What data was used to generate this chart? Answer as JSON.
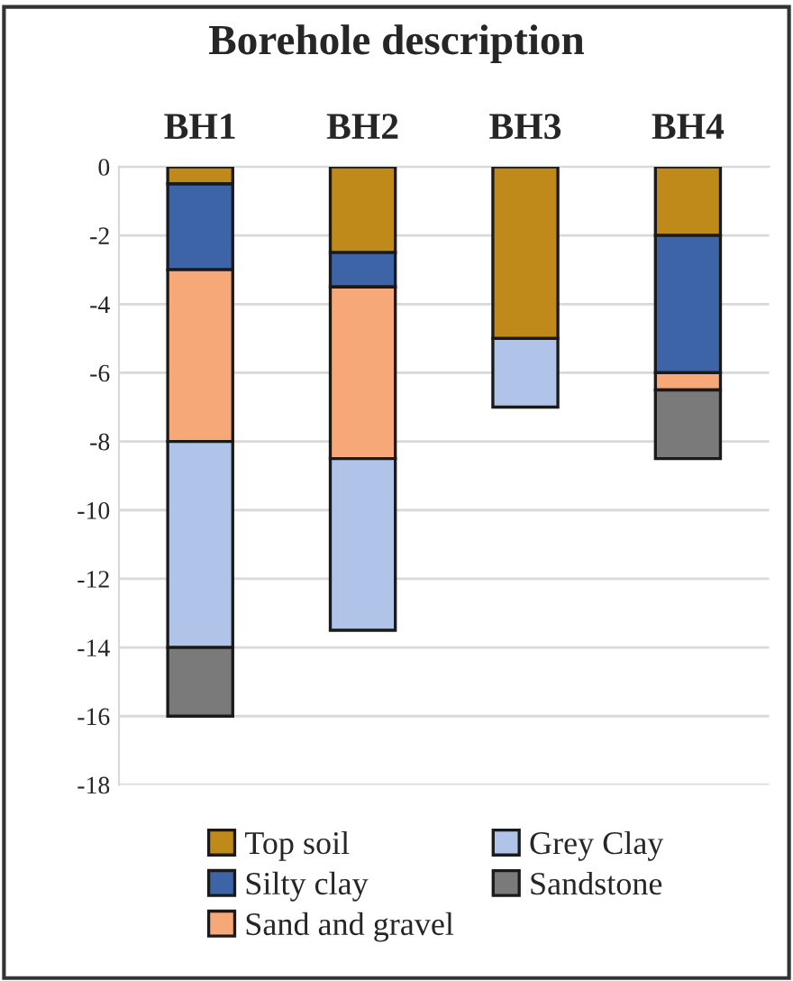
{
  "chart_data": {
    "type": "bar",
    "title": "Borehole description",
    "stacked": true,
    "categories": [
      "BH1",
      "BH2",
      "BH3",
      "BH4"
    ],
    "series": [
      {
        "name": "Top soil",
        "color": "#c08a1a",
        "values": [
          -0.5,
          -2.5,
          -5,
          -2
        ]
      },
      {
        "name": "Silty clay",
        "color": "#3e64a8",
        "values": [
          -2.5,
          -1,
          null,
          -4
        ]
      },
      {
        "name": "Sand and gravel",
        "color": "#f7a878",
        "values": [
          -5,
          -5,
          null,
          -0.5
        ]
      },
      {
        "name": "Grey Clay",
        "color": "#b0c4ea",
        "values": [
          -6,
          -5,
          -2,
          null
        ]
      },
      {
        "name": "Sandstone",
        "color": "#7a7a7a",
        "values": [
          -2,
          null,
          null,
          -2
        ]
      }
    ],
    "ylim": [
      -18,
      0
    ],
    "yticks": [
      0,
      -2,
      -4,
      -6,
      -8,
      -10,
      -12,
      -14,
      -16,
      -18
    ],
    "grid": "y",
    "legend": "bottom"
  }
}
